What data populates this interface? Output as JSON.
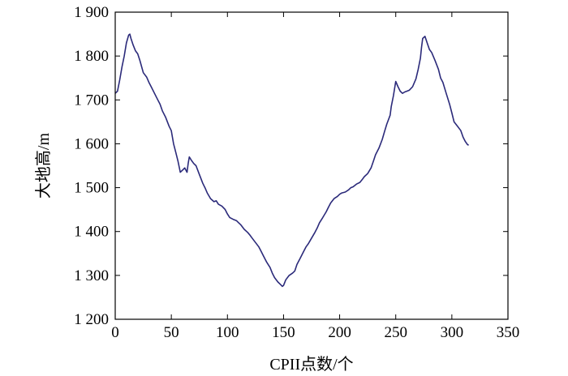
{
  "chart_data": {
    "type": "line",
    "xlabel": "CPII点数/个",
    "ylabel": "大地高/m",
    "xlim": [
      0,
      350
    ],
    "ylim": [
      1200,
      1900
    ],
    "x_ticks": [
      0,
      50,
      100,
      150,
      200,
      250,
      300,
      350
    ],
    "y_ticks": [
      1200,
      1300,
      1400,
      1500,
      1600,
      1700,
      1800,
      1900
    ],
    "x_tick_labels": [
      "0",
      "50",
      "100",
      "150",
      "200",
      "250",
      "300",
      "350"
    ],
    "y_tick_labels": [
      "1 200",
      "1 300",
      "1 400",
      "1 500",
      "1 600",
      "1 700",
      "1 800",
      "1 900"
    ],
    "grid": false,
    "line_color": "#2b2a7a",
    "series": [
      {
        "x": [
          0,
          2,
          4,
          6,
          8,
          10,
          12,
          13,
          14,
          16,
          18,
          20,
          22,
          25,
          28,
          30,
          32,
          35,
          38,
          40,
          42,
          45,
          48,
          50,
          52,
          53,
          54,
          56,
          58,
          60,
          62,
          64,
          65,
          66,
          68,
          70,
          72,
          75,
          78,
          80,
          82,
          85,
          88,
          90,
          92,
          95,
          98,
          100,
          102,
          105,
          108,
          110,
          112,
          115,
          118,
          120,
          122,
          125,
          128,
          130,
          132,
          135,
          138,
          140,
          142,
          145,
          147,
          149,
          150,
          152,
          155,
          158,
          160,
          162,
          165,
          168,
          170,
          172,
          175,
          178,
          180,
          182,
          185,
          188,
          190,
          192,
          195,
          198,
          200,
          202,
          205,
          208,
          210,
          212,
          215,
          218,
          220,
          222,
          225,
          228,
          230,
          232,
          235,
          238,
          240,
          242,
          245,
          246,
          248,
          250,
          252,
          254,
          256,
          258,
          260,
          262,
          265,
          268,
          270,
          272,
          273,
          274,
          276,
          278,
          280,
          282,
          285,
          288,
          290,
          292,
          295,
          298,
          300,
          302,
          305,
          308,
          310,
          312,
          314,
          315
        ],
        "y": [
          1715,
          1720,
          1745,
          1775,
          1800,
          1830,
          1848,
          1850,
          1840,
          1825,
          1812,
          1805,
          1790,
          1762,
          1752,
          1740,
          1730,
          1715,
          1700,
          1690,
          1675,
          1660,
          1640,
          1630,
          1600,
          1590,
          1580,
          1560,
          1535,
          1540,
          1545,
          1535,
          1555,
          1570,
          1562,
          1555,
          1550,
          1530,
          1510,
          1500,
          1488,
          1475,
          1468,
          1470,
          1462,
          1458,
          1450,
          1440,
          1432,
          1428,
          1425,
          1420,
          1415,
          1405,
          1398,
          1392,
          1385,
          1375,
          1365,
          1355,
          1345,
          1330,
          1318,
          1305,
          1295,
          1285,
          1280,
          1275,
          1277,
          1290,
          1300,
          1305,
          1310,
          1325,
          1340,
          1355,
          1365,
          1372,
          1385,
          1398,
          1408,
          1420,
          1432,
          1445,
          1455,
          1465,
          1475,
          1480,
          1485,
          1488,
          1490,
          1495,
          1500,
          1502,
          1508,
          1512,
          1518,
          1525,
          1532,
          1545,
          1560,
          1575,
          1590,
          1610,
          1628,
          1645,
          1665,
          1685,
          1710,
          1742,
          1730,
          1720,
          1715,
          1718,
          1720,
          1722,
          1730,
          1748,
          1770,
          1795,
          1820,
          1840,
          1845,
          1830,
          1815,
          1808,
          1790,
          1770,
          1750,
          1740,
          1715,
          1690,
          1670,
          1650,
          1640,
          1630,
          1615,
          1605,
          1598,
          1597
        ]
      }
    ]
  }
}
